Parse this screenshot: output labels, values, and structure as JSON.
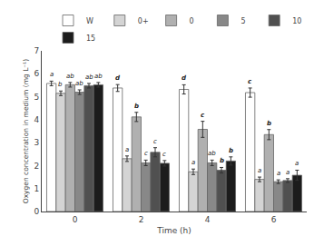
{
  "chart_data": {
    "type": "bar",
    "xlabel": "Time (h)",
    "ylabel": "Oxygen concentration in medium (mg L⁻¹)",
    "categories": [
      "0",
      "2",
      "4",
      "6"
    ],
    "series": [
      {
        "name": "W",
        "color": "#ffffff",
        "values": [
          5.58,
          5.38,
          5.32,
          5.18
        ],
        "errors": [
          0.1,
          0.15,
          0.2,
          0.2
        ],
        "annotations": [
          {
            "text": "a",
            "bold": false
          },
          {
            "text": "d",
            "bold": true
          },
          {
            "text": "d",
            "bold": true
          },
          {
            "text": "c",
            "bold": true
          }
        ]
      },
      {
        "name": "0+",
        "color": "#d4d4d4",
        "values": [
          5.15,
          2.3,
          1.73,
          1.4
        ],
        "errors": [
          0.1,
          0.12,
          0.12,
          0.1
        ],
        "annotations": [
          {
            "text": "b",
            "bold": false
          },
          {
            "text": "a",
            "bold": false
          },
          {
            "text": "a",
            "bold": false
          },
          {
            "text": "a",
            "bold": false
          }
        ]
      },
      {
        "name": "0",
        "color": "#b0b0b0",
        "values": [
          5.52,
          4.12,
          3.58,
          3.35
        ],
        "errors": [
          0.1,
          0.2,
          0.35,
          0.22
        ],
        "annotations": [
          {
            "text": "ab",
            "bold": false
          },
          {
            "text": "b",
            "bold": true
          },
          {
            "text": "c",
            "bold": true
          },
          {
            "text": "b",
            "bold": true
          }
        ]
      },
      {
        "name": "5",
        "color": "#888888",
        "values": [
          5.2,
          2.12,
          2.12,
          1.3
        ],
        "errors": [
          0.1,
          0.12,
          0.12,
          0.08
        ],
        "annotations": [
          {
            "text": "ab",
            "bold": false
          },
          {
            "text": "c",
            "bold": false
          },
          {
            "text": "ab",
            "bold": false
          },
          {
            "text": "a",
            "bold": false
          }
        ]
      },
      {
        "name": "10",
        "color": "#505050",
        "values": [
          5.48,
          2.58,
          1.8,
          1.35
        ],
        "errors": [
          0.1,
          0.2,
          0.12,
          0.08
        ],
        "annotations": [
          {
            "text": "ab",
            "bold": false
          },
          {
            "text": "c",
            "bold": false
          },
          {
            "text": "b",
            "bold": true
          },
          {
            "text": "a",
            "bold": false
          }
        ]
      },
      {
        "name": "15",
        "color": "#1c1c1c",
        "values": [
          5.52,
          2.1,
          2.2,
          1.58
        ],
        "errors": [
          0.1,
          0.12,
          0.18,
          0.22
        ],
        "annotations": [
          {
            "text": "ab",
            "bold": false
          },
          {
            "text": "c",
            "bold": false
          },
          {
            "text": "b",
            "bold": true
          },
          {
            "text": "a",
            "bold": false
          }
        ]
      }
    ],
    "ylim": [
      0,
      7
    ],
    "yticks": [
      0,
      1,
      2,
      3,
      4,
      5,
      6,
      7
    ],
    "grid": false,
    "legend": "upper right"
  }
}
